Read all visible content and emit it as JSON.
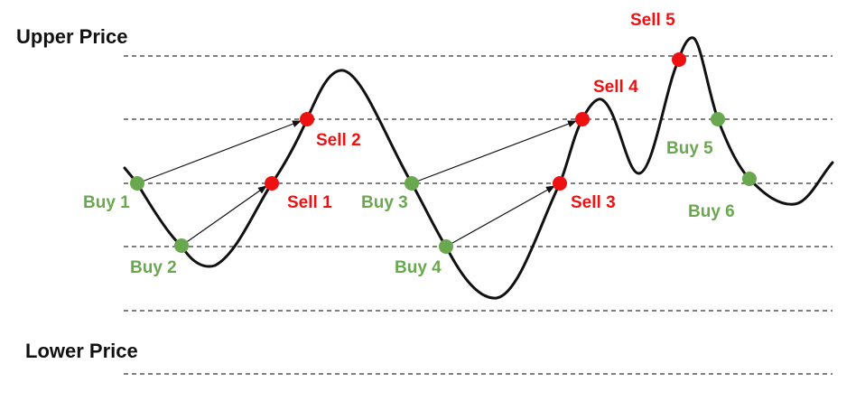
{
  "labels": {
    "upper_price": "Upper Price",
    "lower_price": "Lower Price"
  },
  "colors": {
    "buy": "#6aa84f",
    "sell": "#ee1111",
    "line": "#111111",
    "grid": "#333333"
  },
  "points": [
    {
      "label": "Buy 1",
      "kind": "buy"
    },
    {
      "label": "Buy 2",
      "kind": "buy"
    },
    {
      "label": "Sell 1",
      "kind": "sell"
    },
    {
      "label": "Sell 2",
      "kind": "sell"
    },
    {
      "label": "Buy 3",
      "kind": "buy"
    },
    {
      "label": "Buy 4",
      "kind": "buy"
    },
    {
      "label": "Sell 3",
      "kind": "sell"
    },
    {
      "label": "Sell 4",
      "kind": "sell"
    },
    {
      "label": "Sell 5",
      "kind": "sell"
    },
    {
      "label": "Buy 5",
      "kind": "buy"
    },
    {
      "label": "Buy 6",
      "kind": "buy"
    }
  ]
}
